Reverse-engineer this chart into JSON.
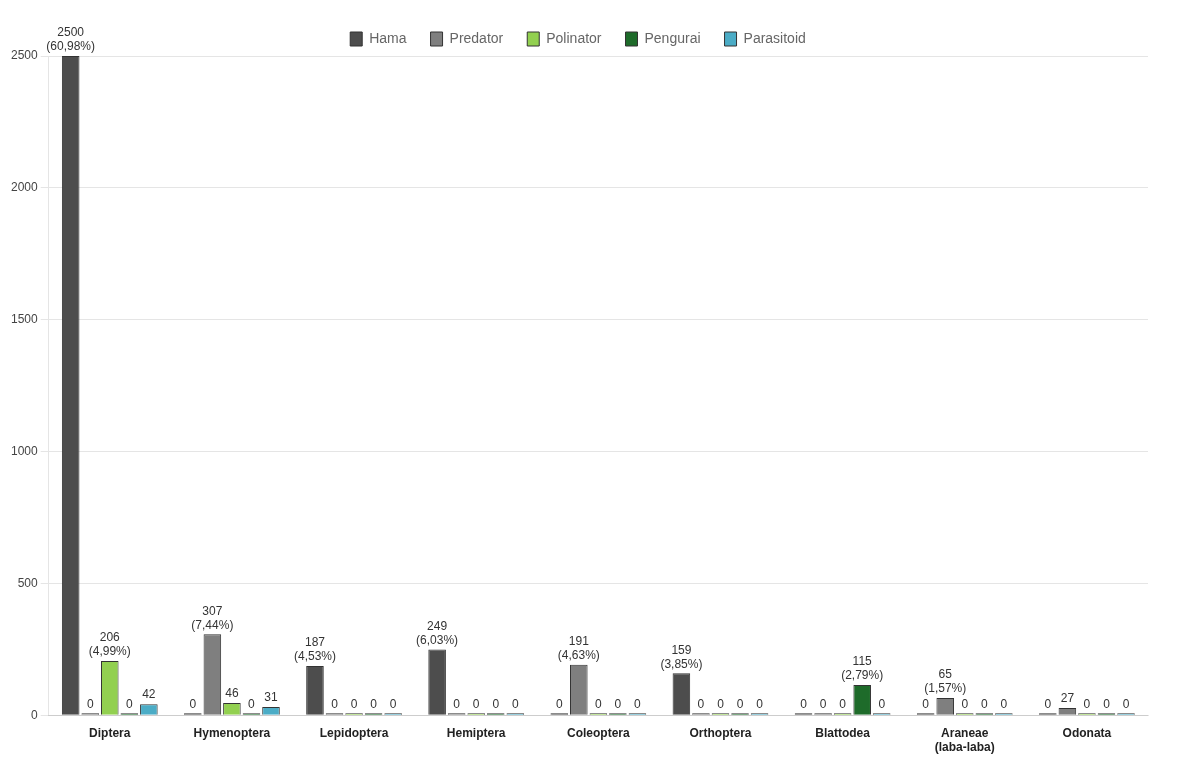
{
  "chart_data": {
    "type": "bar",
    "categories": [
      "Diptera",
      "Hymenoptera",
      "Lepidoptera",
      "Hemiptera",
      "Coleoptera",
      "Orthoptera",
      "Blattodea",
      "Araneae (laba-laba)",
      "Odonata"
    ],
    "series": [
      {
        "name": "Hama",
        "color": "#4d4d4d",
        "values": [
          2500,
          0,
          187,
          249,
          0,
          159,
          0,
          0,
          0
        ],
        "value_labels": [
          "2500 (60,98%)",
          "0",
          "187 (4,53%)",
          "249 (6,03%)",
          "0",
          "159 (3,85%)",
          "0",
          "0",
          "0"
        ]
      },
      {
        "name": "Predator",
        "color": "#7f7f7f",
        "values": [
          0,
          307,
          0,
          0,
          191,
          0,
          0,
          65,
          27
        ],
        "value_labels": [
          "0",
          "307 (7,44%)",
          "0",
          "0",
          "191 (4,63%)",
          "0",
          "0",
          "65 (1,57%)",
          "27"
        ]
      },
      {
        "name": "Polinator",
        "color": "#92d050",
        "values": [
          206,
          46,
          0,
          0,
          0,
          0,
          0,
          0,
          0
        ],
        "value_labels": [
          "206 (4,99%)",
          "46",
          "0",
          "0",
          "0",
          "0",
          "0",
          "0",
          "0"
        ]
      },
      {
        "name": "Pengurai",
        "color": "#1e6b2a",
        "values": [
          0,
          0,
          0,
          0,
          0,
          0,
          115,
          0,
          0
        ],
        "value_labels": [
          "0",
          "0",
          "0",
          "0",
          "0",
          "0",
          "115 (2,79%)",
          "0",
          "0"
        ]
      },
      {
        "name": "Parasitoid",
        "color": "#4bacc6",
        "values": [
          42,
          31,
          0,
          0,
          0,
          0,
          0,
          0,
          0
        ],
        "value_labels": [
          "42",
          "31",
          "0",
          "0",
          "0",
          "0",
          "0",
          "0",
          "0"
        ]
      }
    ],
    "ylim": [
      0,
      2500
    ],
    "yticks": [
      0,
      500,
      1000,
      1500,
      2000,
      2500
    ],
    "grid": "y",
    "legend": "top"
  }
}
